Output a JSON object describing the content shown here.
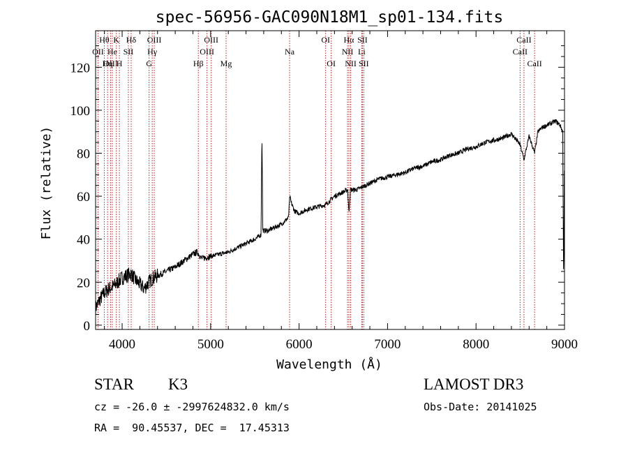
{
  "chart_data": {
    "type": "line",
    "title": "spec-56956-GAC090N18M1_sp01-134.fits",
    "xlabel": "Wavelength (Å)",
    "ylabel": "Flux (relative)",
    "xlim": [
      3700,
      9000
    ],
    "ylim": [
      -2,
      137
    ],
    "xticks": [
      4000,
      5000,
      6000,
      7000,
      8000,
      9000
    ],
    "xtick_labels": [
      "4000",
      "5000",
      "6000",
      "7000",
      "8000",
      "9000"
    ],
    "yticks": [
      0,
      20,
      40,
      60,
      80,
      100,
      120
    ],
    "ytick_labels": [
      "0",
      "20",
      "40",
      "60",
      "80",
      "100",
      "120"
    ],
    "spectrum": {
      "x": [
        3700,
        3750,
        3800,
        3850,
        3900,
        3950,
        4000,
        4050,
        4100,
        4150,
        4200,
        4250,
        4300,
        4350,
        4400,
        4500,
        4600,
        4700,
        4800,
        4850,
        4900,
        5000,
        5100,
        5200,
        5300,
        5400,
        5500,
        5570,
        5580,
        5590,
        5650,
        5700,
        5800,
        5880,
        5895,
        5910,
        5950,
        6000,
        6100,
        6200,
        6300,
        6400,
        6500,
        6550,
        6563,
        6580,
        6650,
        6700,
        6800,
        6900,
        7000,
        7100,
        7200,
        7300,
        7400,
        7500,
        7600,
        7700,
        7800,
        7900,
        8000,
        8100,
        8200,
        8300,
        8400,
        8498,
        8542,
        8600,
        8662,
        8700,
        8750,
        8800,
        8850,
        8900,
        8950,
        8980,
        8990,
        9000
      ],
      "y": [
        8,
        12,
        15,
        17,
        18,
        20,
        22,
        23,
        24,
        21,
        19,
        17,
        20,
        22,
        23,
        25,
        27,
        30,
        33,
        34,
        31,
        32,
        33,
        34,
        36,
        38,
        40,
        42,
        90,
        44,
        44,
        45,
        47,
        50,
        60,
        57,
        53,
        52,
        54,
        55,
        56,
        60,
        62,
        63,
        52,
        63,
        63,
        64,
        66,
        68,
        69,
        70,
        71,
        73,
        74,
        76,
        77,
        79,
        80,
        82,
        83,
        85,
        86,
        87,
        89,
        84,
        77,
        88,
        80,
        90,
        92,
        93,
        94,
        95,
        93,
        90,
        20,
        85
      ]
    },
    "lines": [
      {
        "label": "Hθ",
        "wave": 3798,
        "row": 1
      },
      {
        "label": "OII",
        "wave": 3727,
        "row": 2
      },
      {
        "label": "OIII",
        "wave": 3869,
        "row": 3
      },
      {
        "label": "He",
        "wave": 3889,
        "row": 2
      },
      {
        "label": "K",
        "wave": 3934,
        "row": 1
      },
      {
        "label": "Hη",
        "wave": 3835,
        "row": 3
      },
      {
        "label": "H",
        "wave": 3969,
        "row": 3
      },
      {
        "label": "SII",
        "wave": 4070,
        "row": 2
      },
      {
        "label": "Hδ",
        "wave": 4102,
        "row": 1
      },
      {
        "label": "OIII",
        "wave": 4363,
        "row": 1
      },
      {
        "label": "Hγ",
        "wave": 4340,
        "row": 2
      },
      {
        "label": "G",
        "wave": 4305,
        "row": 3
      },
      {
        "label": "Hβ",
        "wave": 4861,
        "row": 3
      },
      {
        "label": "OIII",
        "wave": 5007,
        "row": 1
      },
      {
        "label": "OIII",
        "wave": 4959,
        "row": 2
      },
      {
        "label": "Mg",
        "wave": 5175,
        "row": 3
      },
      {
        "label": "Na",
        "wave": 5893,
        "row": 2
      },
      {
        "label": "OI",
        "wave": 6300,
        "row": 1
      },
      {
        "label": "OI",
        "wave": 6363,
        "row": 3
      },
      {
        "label": "Hα",
        "wave": 6563,
        "row": 1
      },
      {
        "label": "NII",
        "wave": 6548,
        "row": 2
      },
      {
        "label": "NII",
        "wave": 6583,
        "row": 3
      },
      {
        "label": "SII",
        "wave": 6716,
        "row": 1
      },
      {
        "label": "Li",
        "wave": 6708,
        "row": 2
      },
      {
        "label": "SII",
        "wave": 6731,
        "row": 3
      },
      {
        "label": "CaII",
        "wave": 8542,
        "row": 1
      },
      {
        "label": "CaII",
        "wave": 8498,
        "row": 2
      },
      {
        "label": "CaII",
        "wave": 8662,
        "row": 3
      }
    ]
  },
  "info": {
    "object_class": "STAR",
    "subclass": "K3",
    "survey": "LAMOST DR3",
    "cz": "cz = -26.0 ± -2997624832.0 km/s",
    "obs_date": "Obs-Date: 20141025",
    "coords": "RA =  90.45537, DEC =  17.45313"
  },
  "colors": {
    "spectrum": "#000000",
    "line_marker": "#b22222",
    "axes": "#000000",
    "background": "#ffffff"
  }
}
